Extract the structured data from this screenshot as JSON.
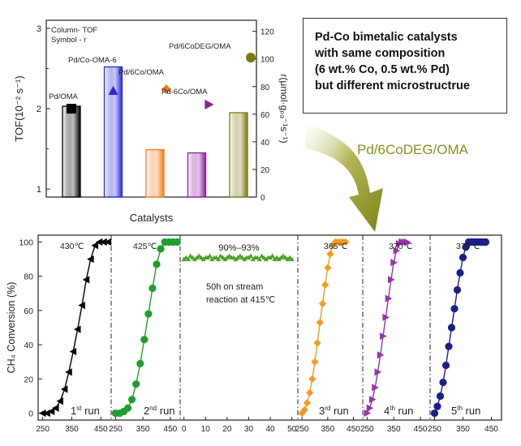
{
  "chart_data": [
    {
      "type": "bar",
      "legend_notes": [
        "Column- TOF",
        "Symbol - r"
      ],
      "xlabel": "Catalysts",
      "ylabel_left": "TOF(10⁻² s⁻¹)",
      "ylabel_right": "r(μmol·gₚₔ⁻¹s⁻¹)",
      "ylim_left": [
        0.9,
        3.1
      ],
      "ylim_right": [
        0,
        128
      ],
      "yticks_left": [
        "1",
        "2",
        "3"
      ],
      "yticks_right": [
        "0",
        "20",
        "40",
        "60",
        "80",
        "100",
        "120"
      ],
      "categories": [
        "Pd/OMA",
        "Pd/Co-OMA-6",
        "Pd/6Co/OMA",
        "Pd-6Co/OMA",
        "Pd/6CoDEG/OMA"
      ],
      "colors": [
        "#000000",
        "#2b2bd6",
        "#f07c1c",
        "#8c1f9e",
        "#7a7a12"
      ],
      "tof": [
        2.03,
        2.52,
        1.49,
        1.45,
        1.95
      ],
      "r": [
        64,
        77,
        78,
        67,
        101
      ],
      "markers": [
        "square",
        "triangle-up",
        "diamond",
        "triangle-right",
        "circle"
      ]
    },
    {
      "type": "line",
      "ylabel": "CH₄ Conversion (%)",
      "ylim": [
        -4,
        104
      ],
      "yticks": [
        "0",
        "20",
        "40",
        "60",
        "80",
        "100"
      ],
      "panels": [
        {
          "name": "1st run",
          "run": "1",
          "run_sup": "st",
          "run_suffix": " run",
          "color": "#000000",
          "marker": "triangle-left",
          "t_label": "430℃",
          "xticks": [
            "250",
            "350",
            "450"
          ],
          "xlim": [
            240,
            480
          ],
          "x": [
            250,
            265,
            280,
            295,
            310,
            325,
            340,
            355,
            370,
            385,
            400,
            415,
            430,
            445,
            460,
            475
          ],
          "y": [
            0,
            0,
            1,
            3,
            7,
            14,
            24,
            36,
            49,
            63,
            78,
            90,
            98,
            100,
            100,
            100
          ]
        },
        {
          "name": "2nd run",
          "run": "2",
          "run_sup": "nd",
          "run_suffix": " run",
          "color": "#1f9e2e",
          "marker": "circle",
          "t_label": "425℃",
          "xticks": [
            "250",
            "350",
            "450"
          ],
          "xlim": [
            240,
            480
          ],
          "x": [
            250,
            265,
            280,
            295,
            310,
            325,
            340,
            355,
            370,
            385,
            400,
            415,
            430,
            445,
            460,
            475
          ],
          "y": [
            0,
            0,
            1,
            3,
            8,
            17,
            29,
            43,
            58,
            73,
            87,
            96,
            100,
            100,
            100,
            100
          ]
        },
        {
          "name": "stability",
          "color": "#4e9e26",
          "marker": "triangle-up",
          "text_range": "90%–93%",
          "text_line1": "50h on stream",
          "text_line2": "reaction at 415℃",
          "xticks": [
            "0",
            "10",
            "20",
            "30",
            "40",
            "50"
          ],
          "xlim": [
            -1,
            52
          ],
          "x": [
            0,
            1,
            2,
            3,
            4,
            5,
            6,
            7,
            8,
            9,
            10,
            11,
            12,
            13,
            14,
            15,
            16,
            17,
            18,
            19,
            20,
            21,
            22,
            23,
            24,
            25,
            26,
            27,
            28,
            29,
            30,
            31,
            32,
            33,
            34,
            35,
            36,
            37,
            38,
            39,
            40,
            41,
            42,
            43,
            44,
            45,
            46,
            47,
            48,
            49,
            50
          ],
          "y": [
            90,
            91,
            90,
            92,
            91,
            90,
            91,
            92,
            91,
            90,
            91,
            91,
            92,
            90,
            91,
            91,
            90,
            92,
            91,
            90,
            91,
            92,
            91,
            91,
            90,
            91,
            92,
            91,
            90,
            91,
            91,
            92,
            90,
            91,
            91,
            90,
            92,
            91,
            90,
            91,
            91,
            92,
            90,
            91,
            90,
            91,
            92,
            91,
            90,
            91,
            90
          ]
        },
        {
          "name": "3rd run",
          "run": "3",
          "run_sup": "rd",
          "run_suffix": " run",
          "color": "#f39b1e",
          "marker": "diamond",
          "t_label": "365℃",
          "xticks": [
            "250",
            "350",
            "450"
          ],
          "xlim": [
            240,
            480
          ],
          "x": [
            250,
            260,
            270,
            280,
            290,
            300,
            310,
            320,
            330,
            340,
            350,
            360,
            370,
            380,
            390,
            400,
            410,
            420
          ],
          "y": [
            0,
            2,
            6,
            12,
            20,
            30,
            41,
            53,
            64,
            75,
            85,
            93,
            98,
            100,
            100,
            100,
            100,
            100
          ]
        },
        {
          "name": "4th run",
          "run": "4",
          "run_sup": "th",
          "run_suffix": " run",
          "color": "#9a2fb0",
          "marker": "triangle-right",
          "t_label": "370℃",
          "xticks": [
            "250",
            "350",
            "450"
          ],
          "xlim": [
            240,
            480
          ],
          "x": [
            250,
            260,
            270,
            280,
            290,
            300,
            310,
            320,
            330,
            340,
            350,
            360,
            370,
            380,
            390,
            400
          ],
          "y": [
            0,
            3,
            8,
            15,
            24,
            34,
            45,
            56,
            67,
            78,
            88,
            95,
            99,
            100,
            100,
            100
          ]
        },
        {
          "name": "5th run",
          "run": "5",
          "run_sup": "th",
          "run_suffix": " run",
          "color": "#1b1f8a",
          "marker": "circle",
          "t_label": "370℃",
          "xticks": [
            "250",
            "350",
            "450"
          ],
          "xlim": [
            240,
            480
          ],
          "x": [
            250,
            260,
            270,
            280,
            290,
            300,
            310,
            320,
            330,
            340,
            350,
            360,
            370,
            380,
            390,
            400,
            410,
            420,
            430
          ],
          "y": [
            0,
            4,
            10,
            18,
            28,
            39,
            50,
            61,
            72,
            82,
            91,
            97,
            100,
            100,
            100,
            100,
            100,
            100,
            100
          ]
        }
      ]
    }
  ],
  "callout": {
    "lines": [
      "Pd-Co bimetalic catalysts",
      "with same composition",
      "(6 wt.% Co, 0.5 wt.% Pd)",
      "but different microstructrue"
    ]
  },
  "arrow_label": "Pd/6CoDEG/OMA"
}
